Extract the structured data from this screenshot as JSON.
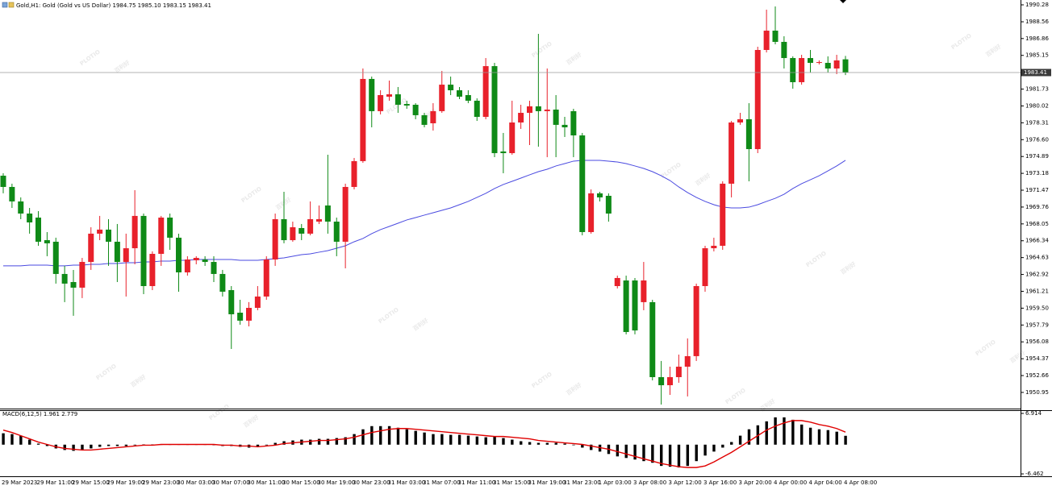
{
  "chart_data": [
    {
      "type": "candlestick",
      "title": "Gold,H1:  Gold (Gold vs US Dollar)  1984.75 1985.10 1983.15 1983.41",
      "categories": [
        "29 Mar 2023",
        null,
        null,
        null,
        "29 Mar 11:00",
        null,
        null,
        null,
        "29 Mar 15:00",
        null,
        null,
        null,
        "29 Mar 19:00",
        null,
        null,
        null,
        "29 Mar 23:00",
        null,
        null,
        null,
        "30 Mar 03:00",
        null,
        null,
        null,
        "30 Mar 07:00",
        null,
        null,
        null,
        "30 Mar 11:00",
        null,
        null,
        null,
        "30 Mar 15:00",
        null,
        null,
        null,
        "30 Mar 19:00",
        null,
        null,
        null,
        "30 Mar 23:00",
        null,
        null,
        null,
        "31 Mar 03:00",
        null,
        null,
        null,
        "31 Mar 07:00",
        null,
        null,
        null,
        "31 Mar 11:00",
        null,
        null,
        null,
        "31 Mar 15:00",
        null,
        null,
        null,
        "31 Mar 19:00",
        null,
        null,
        null,
        "31 Mar 23:00",
        null,
        null,
        null,
        "1 Apr 03:00",
        null,
        null,
        null,
        "3 Apr 08:00",
        null,
        null,
        null,
        "3 Apr 12:00",
        null,
        null,
        null,
        "3 Apr 16:00",
        null,
        null,
        null,
        "3 Apr 20:00",
        null,
        null,
        null,
        "4 Apr 00:00",
        null,
        null,
        null,
        "4 Apr 04:00",
        null,
        null,
        null,
        "4 Apr 08:00"
      ],
      "open": [
        1972.94,
        1971.8,
        1970.33,
        1969.1,
        1968.69,
        1966.4,
        1966.24,
        1962.97,
        1962.15,
        1961.58,
        1964.19,
        1967.06,
        1967.47,
        1966.24,
        1964.19,
        1965.58,
        1968.86,
        1961.74,
        1965.01,
        1968.69,
        1966.65,
        1963.13,
        1964.36,
        1964.44,
        1964.19,
        1962.97,
        1961.33,
        1959.04,
        1958.23,
        1959.53,
        1960.68,
        1964.44,
        1968.53,
        1966.4,
        1967.63,
        1967.06,
        1968.28,
        1969.92,
        1968.28,
        1966.24,
        1971.8,
        1974.42,
        1982.76,
        1979.49,
        1980.96,
        1981.2,
        1980.22,
        1980.14,
        1979.08,
        1978.26,
        1979.49,
        1982.18,
        1981.61,
        1981.12,
        1980.55,
        1978.91,
        1984.06,
        1975.4,
        1975.23,
        1978.34,
        1979.32,
        1979.98,
        1979.49,
        1979.65,
        1978.1,
        1979.49,
        1977.03,
        1967.22,
        1971.15,
        1970.9,
        1961.74,
        1962.31,
        1962.31,
        1960.11,
        1960.11,
        1952.5,
        1951.68,
        1952.5,
        1953.56,
        1954.63,
        1961.74,
        1965.58,
        1965.83,
        1972.13,
        1978.34,
        1978.67,
        1975.64,
        1985.7,
        1987.66,
        1986.52,
        1984.88,
        1982.43,
        1984.88,
        1984.39,
        1984.39,
        1983.82,
        1984.75
      ],
      "high": [
        1973.19,
        1972.13,
        1970.74,
        1969.67,
        1969.35,
        1967.22,
        1966.65,
        1963.79,
        1963.38,
        1964.6,
        1967.71,
        1968.86,
        1968.53,
        1968.04,
        1967.06,
        1971.47,
        1969.1,
        1965.26,
        1968.86,
        1969.1,
        1967.06,
        1964.77,
        1964.77,
        1964.77,
        1964.77,
        1963.38,
        1961.74,
        1960.35,
        1960.11,
        1961.74,
        1964.77,
        1969.1,
        1971.31,
        1968.28,
        1968.04,
        1970.33,
        1969.92,
        1975.07,
        1968.69,
        1972.13,
        1974.74,
        1983.82,
        1983.0,
        1981.61,
        1982.59,
        1981.94,
        1980.55,
        1980.3,
        1979.32,
        1980.3,
        1983.57,
        1983.0,
        1981.94,
        1981.61,
        1980.79,
        1984.88,
        1984.39,
        1977.28,
        1980.55,
        1980.14,
        1980.55,
        1987.34,
        1983.82,
        1981.12,
        1978.91,
        1979.73,
        1977.28,
        1971.55,
        1971.31,
        1971.15,
        1962.8,
        1962.8,
        1962.56,
        1964.19,
        1960.35,
        1954.14,
        1953.56,
        1954.79,
        1956.43,
        1961.99,
        1965.83,
        1966.65,
        1972.37,
        1978.5,
        1979.32,
        1980.3,
        1986.03,
        1989.79,
        1990.12,
        1987.09,
        1985.05,
        1985.21,
        1985.7,
        1984.64,
        1985.05,
        1985.21,
        1985.1
      ],
      "low": [
        1971.15,
        1969.67,
        1968.53,
        1967.06,
        1965.83,
        1964.77,
        1961.99,
        1960.11,
        1958.72,
        1960.52,
        1963.38,
        1966.4,
        1963.79,
        1962.15,
        1960.68,
        1963.95,
        1960.92,
        1961.33,
        1963.79,
        1965.42,
        1961.17,
        1962.8,
        1963.95,
        1963.79,
        1962.15,
        1960.68,
        1955.36,
        1957.82,
        1957.65,
        1959.29,
        1960.35,
        1963.79,
        1966.08,
        1966.24,
        1966.4,
        1966.89,
        1968.04,
        1967.06,
        1964.77,
        1963.54,
        1971.55,
        1974.25,
        1977.85,
        1979.16,
        1980.55,
        1979.32,
        1979.73,
        1978.67,
        1977.85,
        1977.52,
        1979.32,
        1981.12,
        1980.71,
        1980.3,
        1978.5,
        1978.67,
        1974.82,
        1973.19,
        1975.07,
        1977.69,
        1976.05,
        1975.89,
        1974.82,
        1974.82,
        1976.87,
        1974.82,
        1966.89,
        1967.06,
        1970.33,
        1968.28,
        1961.5,
        1956.84,
        1956.84,
        1959.29,
        1952.17,
        1949.72,
        1950.7,
        1951.93,
        1950.54,
        1954.14,
        1961.17,
        1965.26,
        1965.42,
        1970.74,
        1978.1,
        1972.37,
        1975.23,
        1985.45,
        1986.27,
        1983.82,
        1981.77,
        1982.18,
        1983.41,
        1984.23,
        1983.41,
        1983.25,
        1983.15
      ],
      "close": [
        1971.8,
        1970.33,
        1969.1,
        1968.2,
        1966.24,
        1966.08,
        1962.97,
        1961.99,
        1961.58,
        1964.19,
        1967.06,
        1967.47,
        1966.24,
        1964.19,
        1965.58,
        1968.86,
        1961.74,
        1965.01,
        1968.69,
        1966.65,
        1963.13,
        1964.44,
        1964.6,
        1964.19,
        1962.97,
        1961.17,
        1958.88,
        1958.23,
        1959.53,
        1960.68,
        1964.44,
        1968.53,
        1966.4,
        1967.71,
        1967.06,
        1968.53,
        1968.53,
        1968.28,
        1966.24,
        1971.8,
        1974.42,
        1982.76,
        1979.49,
        1981.12,
        1981.2,
        1980.14,
        1980.06,
        1979.08,
        1978.1,
        1979.49,
        1982.18,
        1981.61,
        1980.96,
        1980.55,
        1978.91,
        1984.06,
        1975.23,
        1975.23,
        1978.34,
        1979.32,
        1979.98,
        1979.49,
        1979.65,
        1978.1,
        1977.85,
        1977.03,
        1967.22,
        1971.15,
        1970.74,
        1969.1,
        1962.56,
        1957.08,
        1957.24,
        1962.31,
        1952.5,
        1951.68,
        1952.5,
        1953.56,
        1954.63,
        1961.74,
        1965.58,
        1965.83,
        1972.13,
        1978.34,
        1978.67,
        1975.64,
        1985.7,
        1987.66,
        1986.52,
        1984.88,
        1982.43,
        1984.88,
        1984.39,
        1984.47,
        1983.82,
        1984.64,
        1983.41
      ],
      "up_color": "#e8212b",
      "down_color": "#0f8a17",
      "ma": {
        "color": "#4a4ae0",
        "values": [
          1963.79,
          1963.79,
          1963.79,
          1963.87,
          1963.87,
          1963.87,
          1963.79,
          1963.79,
          1963.87,
          1963.87,
          1963.95,
          1963.95,
          1964.03,
          1964.03,
          1964.11,
          1964.11,
          1964.19,
          1964.19,
          1964.28,
          1964.28,
          1964.36,
          1964.36,
          1964.44,
          1964.44,
          1964.44,
          1964.44,
          1964.44,
          1964.36,
          1964.36,
          1964.36,
          1964.44,
          1964.52,
          1964.6,
          1964.77,
          1964.93,
          1965.01,
          1965.18,
          1965.34,
          1965.58,
          1965.83,
          1966.24,
          1966.57,
          1967.06,
          1967.47,
          1967.79,
          1968.12,
          1968.45,
          1968.69,
          1968.94,
          1969.18,
          1969.43,
          1969.67,
          1970.0,
          1970.33,
          1970.74,
          1971.15,
          1971.64,
          1972.05,
          1972.37,
          1972.7,
          1973.03,
          1973.35,
          1973.6,
          1973.93,
          1974.17,
          1974.42,
          1974.5,
          1974.5,
          1974.5,
          1974.42,
          1974.33,
          1974.17,
          1973.93,
          1973.68,
          1973.35,
          1972.94,
          1972.45,
          1971.8,
          1971.23,
          1970.74,
          1970.33,
          1970.0,
          1969.75,
          1969.67,
          1969.67,
          1969.75,
          1970.0,
          1970.33,
          1970.65,
          1971.06,
          1971.64,
          1972.13,
          1972.53,
          1972.94,
          1973.43,
          1973.93,
          1974.5
        ]
      },
      "price_line": 1983.41,
      "ylim": [
        1949.31,
        1990.77
      ],
      "yticks": [
        1990.28,
        1988.56,
        1986.86,
        1985.15,
        1981.73,
        1980.02,
        1978.31,
        {
          "value": 1976.6,
          "label": "1976.60"
        },
        1974.89,
        1973.18,
        1971.47,
        1969.76,
        1968.05,
        1966.34,
        1964.63,
        1962.92,
        1961.21,
        {
          "value": 1959.5,
          "label": "1959.50"
        },
        1957.79,
        1956.08,
        1954.37,
        1952.66,
        1950.95
      ],
      "watermark": {
        "logo": "PLOTIO",
        "text": "百利好"
      }
    },
    {
      "type": "macd",
      "title": "MACD(6,12,5) 1.961 2.779",
      "color": "#000000",
      "values": [
        2.52,
        2.34,
        1.99,
        1.11,
        0.23,
        -0.3,
        -0.83,
        -1.18,
        -1.36,
        -1.18,
        -0.83,
        -0.48,
        -0.3,
        -0.3,
        -0.3,
        -0.12,
        0.05,
        0.05,
        0.05,
        0.05,
        0.05,
        0.05,
        0.05,
        0.05,
        -0.12,
        -0.3,
        -0.3,
        -0.48,
        -0.65,
        -0.48,
        -0.12,
        0.4,
        0.76,
        0.93,
        1.11,
        1.11,
        1.29,
        1.29,
        1.46,
        1.64,
        2.34,
        3.4,
        4.1,
        4.1,
        4.1,
        3.75,
        3.4,
        3.05,
        2.69,
        2.34,
        2.34,
        2.17,
        2.17,
        1.99,
        1.81,
        1.64,
        1.81,
        1.46,
        1.11,
        0.76,
        0.58,
        0.4,
        0.4,
        0.4,
        0.23,
        -0.12,
        -0.65,
        -1.18,
        -1.53,
        -2.06,
        -2.59,
        -2.94,
        -3.29,
        -3.64,
        -4.0,
        -4.7,
        -4.88,
        -5.05,
        -4.7,
        -3.64,
        -2.41,
        -1.53,
        -0.65,
        0.58,
        1.99,
        3.4,
        4.28,
        5.16,
        6.04,
        6.04,
        5.51,
        4.45,
        3.75,
        3.4,
        3.22,
        2.87,
        1.961
      ],
      "signal": {
        "color": "#e00000",
        "values": [
          3.22,
          2.69,
          1.99,
          1.29,
          0.58,
          0.05,
          -0.48,
          -0.83,
          -1.0,
          -1.18,
          -1.18,
          -1.0,
          -0.83,
          -0.65,
          -0.48,
          -0.3,
          -0.12,
          -0.12,
          0.05,
          0.05,
          0.05,
          0.05,
          0.05,
          0.05,
          0.05,
          -0.12,
          -0.12,
          -0.3,
          -0.3,
          -0.48,
          -0.3,
          -0.12,
          0.23,
          0.4,
          0.58,
          0.76,
          0.93,
          0.93,
          1.11,
          1.29,
          1.64,
          2.17,
          2.69,
          3.05,
          3.4,
          3.57,
          3.57,
          3.4,
          3.22,
          3.05,
          2.87,
          2.69,
          2.52,
          2.34,
          2.17,
          1.99,
          1.81,
          1.81,
          1.64,
          1.46,
          1.29,
          0.93,
          0.76,
          0.58,
          0.4,
          0.23,
          0.05,
          -0.3,
          -0.65,
          -1.0,
          -1.53,
          -2.06,
          -2.59,
          -3.12,
          -3.64,
          -4.17,
          -4.52,
          -4.88,
          -5.05,
          -5.05,
          -4.7,
          -3.82,
          -2.76,
          -1.71,
          -0.48,
          0.76,
          1.99,
          3.22,
          4.1,
          4.81,
          5.33,
          5.33,
          4.98,
          4.45,
          4.1,
          3.57,
          2.779
        ]
      },
      "ylim": [
        -6.99,
        7.447
      ],
      "yticks": [
        6.914,
        -6.462
      ]
    }
  ]
}
